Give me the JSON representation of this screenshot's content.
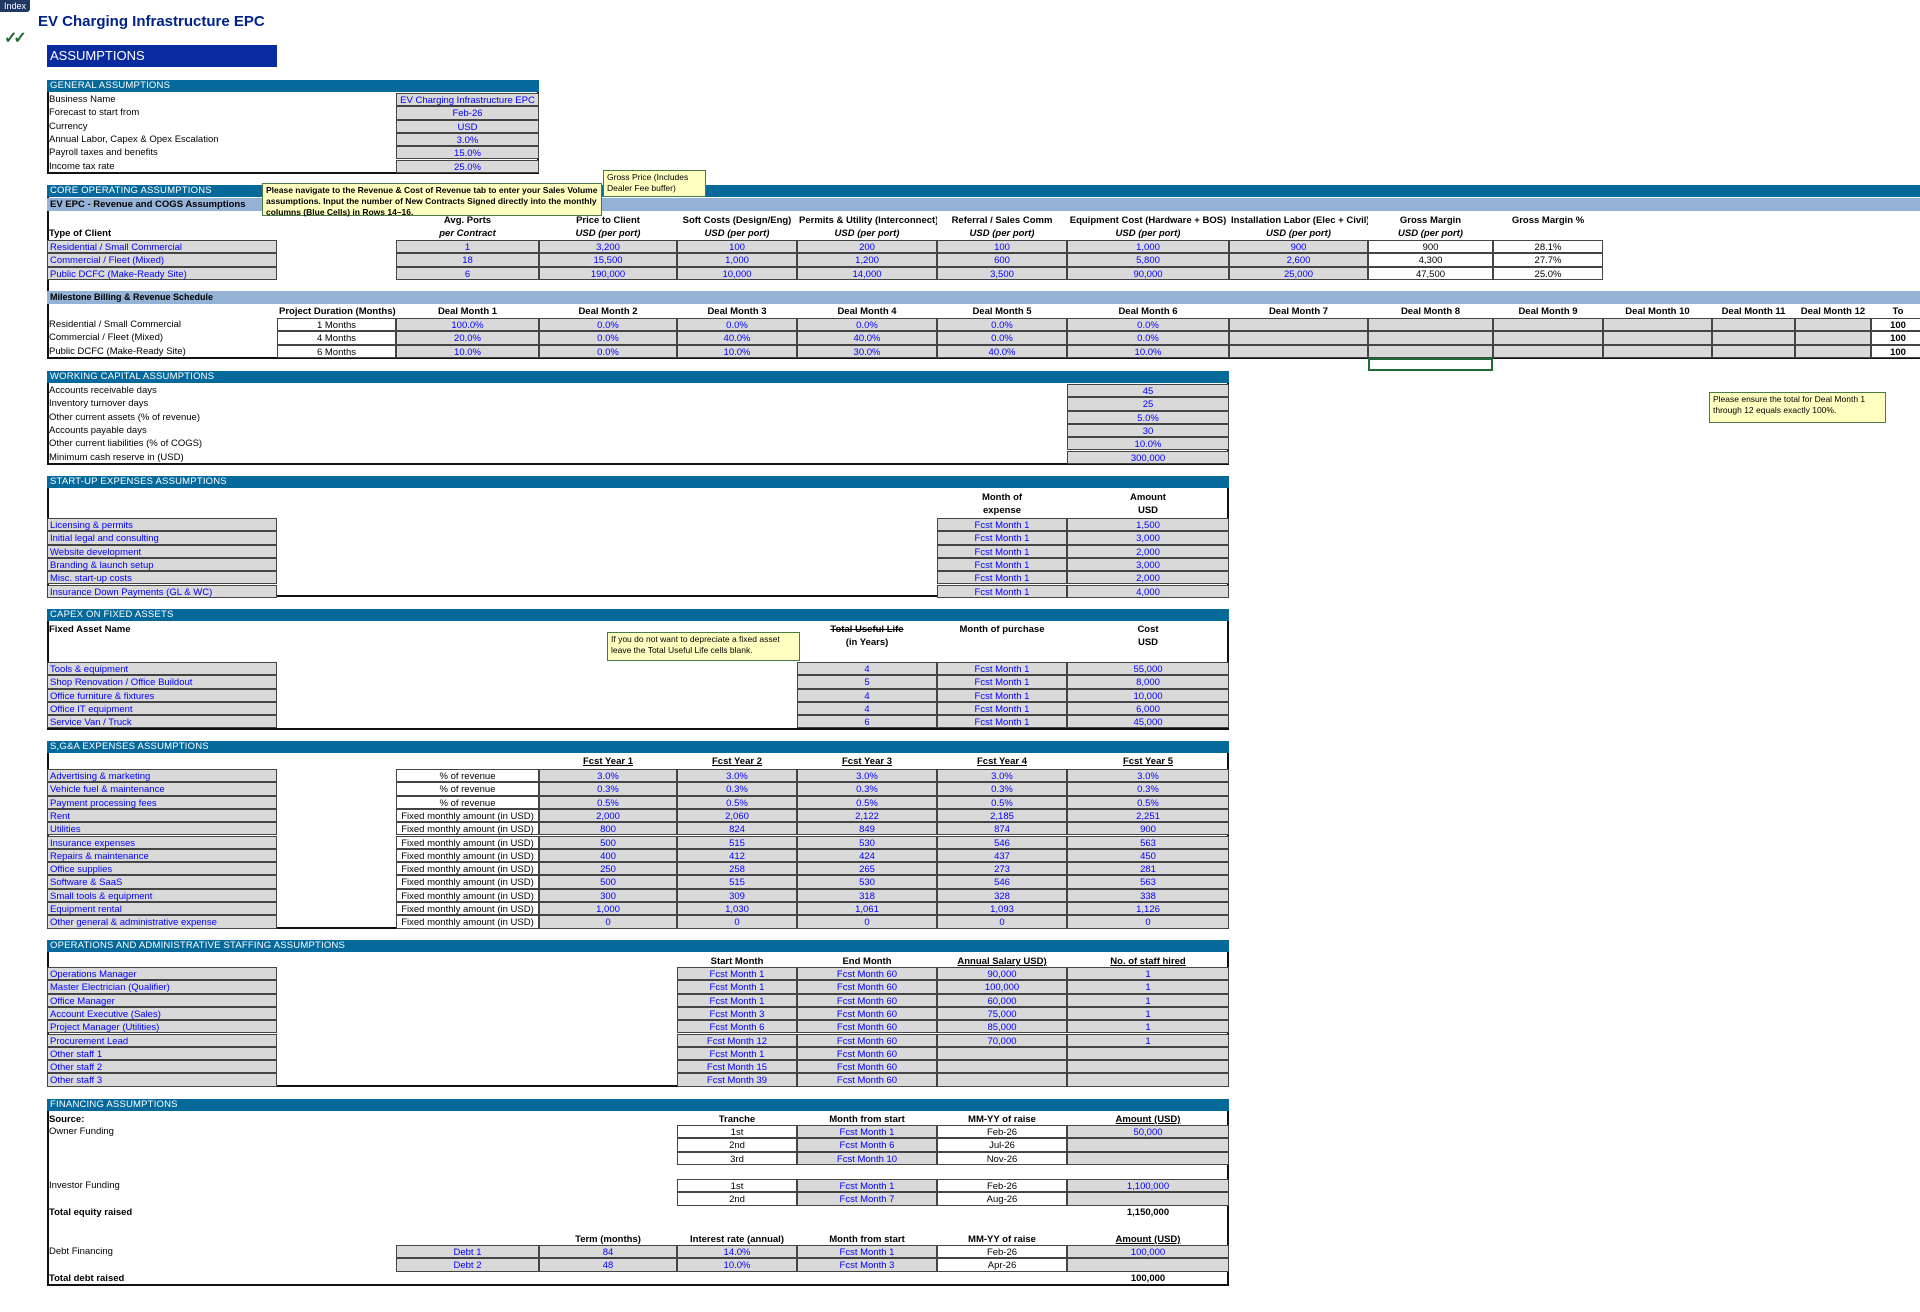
{
  "tab_index": "Index",
  "title": "EV Charging Infrastructure EPC",
  "banner": "ASSUMPTIONS",
  "colors": {
    "band": "#05699c",
    "subband": "#95b3d7",
    "input_text": "#0000ff",
    "input_bg": "#d9d9d9",
    "banner": "#0a2aa0",
    "note_bg": "#ffffc0"
  },
  "general": {
    "header": "GENERAL ASSUMPTIONS",
    "rows": [
      {
        "label": "Business Name",
        "value": "EV Charging Infrastructure EPC"
      },
      {
        "label": "Forecast to start from",
        "value": "Feb-26"
      },
      {
        "label": "Currency",
        "value": "USD"
      },
      {
        "label": "Annual Labor, Capex & Opex Escalation",
        "value": "3.0%"
      },
      {
        "label": "Payroll taxes and benefits",
        "value": "15.0%"
      },
      {
        "label": "Income tax rate",
        "value": "25.0%"
      }
    ]
  },
  "core": {
    "header": "CORE OPERATING ASSUMPTIONS",
    "subheader": "EV EPC - Revenue and COGS Assumptions",
    "note": "Please navigate to the Revenue & Cost of Revenue tab to enter your Sales Volume assumptions. Input the number of New Contracts Signed directly into the monthly columns (Blue Cells) in Rows 14–16.",
    "price_comment": "Gross Price (Includes Dealer Fee buffer)",
    "type_label": "Type of Client",
    "columns": [
      {
        "h1": "Avg. Ports",
        "h2": "per Contract"
      },
      {
        "h1": "Price to Client",
        "h2": "USD (per port)"
      },
      {
        "h1": "Soft Costs (Design/Eng)",
        "h2": "USD (per port)"
      },
      {
        "h1": "Permits & Utility (Interconnect)",
        "h2": "USD (per port)"
      },
      {
        "h1": "Referral / Sales Comm",
        "h2": "USD (per port)"
      },
      {
        "h1": "Equipment Cost (Hardware + BOS)",
        "h2": "USD (per port)"
      },
      {
        "h1": "Installation Labor (Elec + Civil)",
        "h2": "USD (per port)"
      },
      {
        "h1": "Gross Margin",
        "h2": "USD (per port)"
      },
      {
        "h1": "Gross Margin %",
        "h2": ""
      }
    ],
    "rows": [
      {
        "label": "Residential / Small Commercial",
        "values": [
          "1",
          "3,200",
          "100",
          "200",
          "100",
          "1,000",
          "900",
          "900",
          "28.1%"
        ]
      },
      {
        "label": "Commercial / Fleet (Mixed)",
        "values": [
          "18",
          "15,500",
          "1,000",
          "1,200",
          "600",
          "5,800",
          "2,600",
          "4,300",
          "27.7%"
        ]
      },
      {
        "label": "Public DCFC (Make-Ready Site)",
        "values": [
          "6",
          "190,000",
          "10,000",
          "14,000",
          "3,500",
          "90,000",
          "25,000",
          "47,500",
          "25.0%"
        ]
      }
    ]
  },
  "milestone": {
    "header": "Milestone Billing & Revenue Schedule",
    "duration_label": "Project Duration (Months)",
    "months": [
      "Deal Month 1",
      "Deal Month 2",
      "Deal Month 3",
      "Deal Month 4",
      "Deal Month 5",
      "Deal Month 6",
      "Deal Month 7",
      "Deal Month 8",
      "Deal Month 9",
      "Deal Month 10",
      "Deal Month 11",
      "Deal Month 12"
    ],
    "total_label": "To",
    "note": "Please ensure the total for Deal Month 1 through 12 equals exactly 100%.",
    "rows": [
      {
        "label": "Residential / Small Commercial",
        "duration": "1 Months",
        "values": [
          "100.0%",
          "0.0%",
          "0.0%",
          "0.0%",
          "0.0%",
          "0.0%",
          "",
          "",
          "",
          "",
          "",
          ""
        ],
        "total": "100"
      },
      {
        "label": "Commercial / Fleet (Mixed)",
        "duration": "4 Months",
        "values": [
          "20.0%",
          "0.0%",
          "40.0%",
          "40.0%",
          "0.0%",
          "0.0%",
          "",
          "",
          "",
          "",
          "",
          ""
        ],
        "total": "100"
      },
      {
        "label": "Public DCFC (Make-Ready Site)",
        "duration": "6 Months",
        "values": [
          "10.0%",
          "0.0%",
          "10.0%",
          "30.0%",
          "40.0%",
          "10.0%",
          "",
          "",
          "",
          "",
          "",
          ""
        ],
        "total": "100"
      }
    ]
  },
  "working_capital": {
    "header": "WORKING CAPITAL ASSUMPTIONS",
    "rows": [
      {
        "label": "Accounts receivable days",
        "value": "45"
      },
      {
        "label": "Inventory turnover days",
        "value": "25"
      },
      {
        "label": "Other current assets (% of revenue)",
        "value": "5.0%"
      },
      {
        "label": "Accounts payable days",
        "value": "30"
      },
      {
        "label": "Other current liabilities (% of COGS)",
        "value": "10.0%"
      },
      {
        "label": "Minimum cash reserve in (USD)",
        "value": "300,000"
      }
    ]
  },
  "startup": {
    "header": "START-UP EXPENSES ASSUMPTIONS",
    "month_h1": "Month of",
    "month_h2": "expense",
    "amount_h1": "Amount",
    "amount_h2": "USD",
    "rows": [
      {
        "label": "Licensing & permits",
        "month": "Fcst Month 1",
        "amount": "1,500"
      },
      {
        "label": "Initial legal and consulting",
        "month": "Fcst Month 1",
        "amount": "3,000"
      },
      {
        "label": "Website development",
        "month": "Fcst Month 1",
        "amount": "2,000"
      },
      {
        "label": "Branding & launch setup",
        "month": "Fcst Month 1",
        "amount": "3,000"
      },
      {
        "label": "Misc. start-up costs",
        "month": "Fcst Month 1",
        "amount": "2,000"
      },
      {
        "label": "Insurance Down Payments (GL & WC)",
        "month": "Fcst Month 1",
        "amount": "4,000"
      }
    ]
  },
  "capex": {
    "header": "CAPEX ON FIXED ASSETS",
    "name_label": "Fixed Asset Name",
    "life_h1": "Total Useful Life",
    "life_h2": "(in Years)",
    "month_h": "Month of purchase",
    "cost_h1": "Cost",
    "cost_h2": "USD",
    "note": "If you do not want to depreciate a fixed asset leave the Total Useful Life cells blank.",
    "rows": [
      {
        "label": "Tools & equipment",
        "life": "4",
        "month": "Fcst Month 1",
        "cost": "55,000"
      },
      {
        "label": "Shop Renovation / Office Buildout",
        "life": "5",
        "month": "Fcst Month 1",
        "cost": "8,000"
      },
      {
        "label": "Office furniture & fixtures",
        "life": "4",
        "month": "Fcst Month 1",
        "cost": "10,000"
      },
      {
        "label": "Office IT equipment",
        "life": "4",
        "month": "Fcst Month 1",
        "cost": "6,000"
      },
      {
        "label": "Service Van / Truck",
        "life": "6",
        "month": "Fcst Month 1",
        "cost": "45,000"
      }
    ]
  },
  "sga": {
    "header": "S,G&A EXPENSES ASSUMPTIONS",
    "years": [
      "Fcst Year 1",
      "Fcst Year 2",
      "Fcst Year 3",
      "Fcst Year 4",
      "Fcst Year 5"
    ],
    "rows": [
      {
        "label": "Advertising & marketing",
        "type": "% of revenue",
        "values": [
          "3.0%",
          "3.0%",
          "3.0%",
          "3.0%",
          "3.0%"
        ]
      },
      {
        "label": "Vehicle fuel & maintenance",
        "type": "% of revenue",
        "values": [
          "0.3%",
          "0.3%",
          "0.3%",
          "0.3%",
          "0.3%"
        ]
      },
      {
        "label": "Payment processing fees",
        "type": "% of revenue",
        "values": [
          "0.5%",
          "0.5%",
          "0.5%",
          "0.5%",
          "0.5%"
        ]
      },
      {
        "label": "Rent",
        "type": "Fixed monthly amount (in USD)",
        "values": [
          "2,000",
          "2,060",
          "2,122",
          "2,185",
          "2,251"
        ]
      },
      {
        "label": "Utilities",
        "type": "Fixed monthly amount (in USD)",
        "values": [
          "800",
          "824",
          "849",
          "874",
          "900"
        ]
      },
      {
        "label": "Insurance expenses",
        "type": "Fixed monthly amount (in USD)",
        "values": [
          "500",
          "515",
          "530",
          "546",
          "563"
        ]
      },
      {
        "label": "Repairs & maintenance",
        "type": "Fixed monthly amount (in USD)",
        "values": [
          "400",
          "412",
          "424",
          "437",
          "450"
        ]
      },
      {
        "label": "Office supplies",
        "type": "Fixed monthly amount (in USD)",
        "values": [
          "250",
          "258",
          "265",
          "273",
          "281"
        ]
      },
      {
        "label": "Software & SaaS",
        "type": "Fixed monthly amount (in USD)",
        "values": [
          "500",
          "515",
          "530",
          "546",
          "563"
        ]
      },
      {
        "label": "Small tools & equipment",
        "type": "Fixed monthly amount (in USD)",
        "values": [
          "300",
          "309",
          "318",
          "328",
          "338"
        ]
      },
      {
        "label": "Equipment rental",
        "type": "Fixed monthly amount (in USD)",
        "values": [
          "1,000",
          "1,030",
          "1,061",
          "1,093",
          "1,126"
        ]
      },
      {
        "label": "Other general & administrative expense",
        "type": "Fixed monthly amount (in USD)",
        "values": [
          "0",
          "0",
          "0",
          "0",
          "0"
        ]
      }
    ]
  },
  "staffing": {
    "header": "OPERATIONS AND ADMINISTRATIVE STAFFING ASSUMPTIONS",
    "start_h": "Start Month",
    "end_h": "End Month",
    "salary_h": "Annual Salary USD)",
    "staff_h": "No. of staff hired",
    "rows": [
      {
        "label": "Operations Manager",
        "start": "Fcst Month 1",
        "end": "Fcst Month 60",
        "salary": "90,000",
        "staff": "1"
      },
      {
        "label": "Master Electrician (Qualifier)",
        "start": "Fcst Month 1",
        "end": "Fcst Month 60",
        "salary": "100,000",
        "staff": "1"
      },
      {
        "label": "Office Manager",
        "start": "Fcst Month 1",
        "end": "Fcst Month 60",
        "salary": "60,000",
        "staff": "1"
      },
      {
        "label": "Account Executive (Sales)",
        "start": "Fcst Month 3",
        "end": "Fcst Month 60",
        "salary": "75,000",
        "staff": "1"
      },
      {
        "label": "Project Manager (Utilities)",
        "start": "Fcst Month 6",
        "end": "Fcst Month 60",
        "salary": "85,000",
        "staff": "1"
      },
      {
        "label": "Procurement Lead",
        "start": "Fcst Month 12",
        "end": "Fcst Month 60",
        "salary": "70,000",
        "staff": "1"
      },
      {
        "label": "Other staff 1",
        "start": "Fcst Month 1",
        "end": "Fcst Month 60",
        "salary": "",
        "staff": ""
      },
      {
        "label": "Other staff 2",
        "start": "Fcst Month 15",
        "end": "Fcst Month 60",
        "salary": "",
        "staff": ""
      },
      {
        "label": "Other staff 3",
        "start": "Fcst Month 39",
        "end": "Fcst Month 60",
        "salary": "",
        "staff": ""
      }
    ]
  },
  "financing": {
    "header": "FINANCING ASSUMPTIONS",
    "source_label": "Source:",
    "tranche_h": "Tranche",
    "month_h": "Month from start",
    "mmyy_h": "MM-YY of raise",
    "amount_h": "Amount (USD)",
    "owner_label": "Owner Funding",
    "owner": [
      {
        "tranche": "1st",
        "month": "Fcst Month 1",
        "mmyy": "Feb-26",
        "amount": "50,000"
      },
      {
        "tranche": "2nd",
        "month": "Fcst Month 6",
        "mmyy": "Jul-26",
        "amount": ""
      },
      {
        "tranche": "3rd",
        "month": "Fcst Month 10",
        "mmyy": "Nov-26",
        "amount": ""
      }
    ],
    "investor_label": "Investor Funding",
    "investor": [
      {
        "tranche": "1st",
        "month": "Fcst Month 1",
        "mmyy": "Feb-26",
        "amount": "1,100,000"
      },
      {
        "tranche": "2nd",
        "month": "Fcst Month 7",
        "mmyy": "Aug-26",
        "amount": ""
      }
    ],
    "total_equity_label": "Total equity raised",
    "total_equity": "1,150,000",
    "term_h": "Term (months)",
    "rate_h": "Interest rate (annual)",
    "debt_label": "Debt Financing",
    "debt": [
      {
        "name": "Debt 1",
        "term": "84",
        "rate": "14.0%",
        "month": "Fcst Month 1",
        "mmyy": "Feb-26",
        "amount": "100,000"
      },
      {
        "name": "Debt 2",
        "term": "48",
        "rate": "10.0%",
        "month": "Fcst Month 3",
        "mmyy": "Apr-26",
        "amount": ""
      }
    ],
    "total_debt_label": "Total debt raised",
    "total_debt": "100,000"
  }
}
